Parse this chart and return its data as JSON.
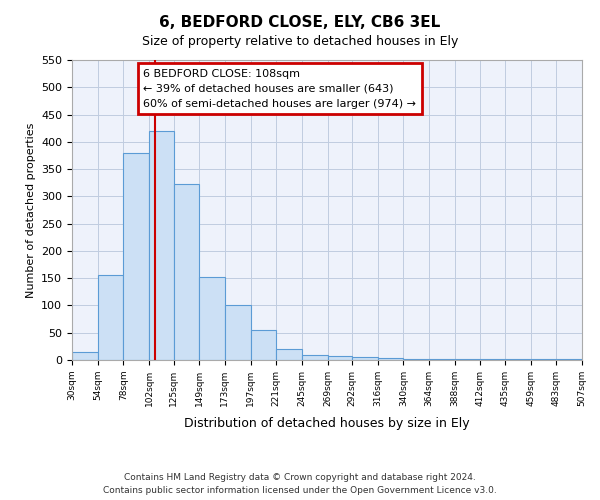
{
  "title": "6, BEDFORD CLOSE, ELY, CB6 3EL",
  "subtitle": "Size of property relative to detached houses in Ely",
  "xlabel": "Distribution of detached houses by size in Ely",
  "ylabel": "Number of detached properties",
  "bar_edges": [
    30,
    54,
    78,
    102,
    125,
    149,
    173,
    197,
    221,
    245,
    269,
    292,
    316,
    340,
    364,
    388,
    412,
    435,
    459,
    483,
    507
  ],
  "bar_heights": [
    15,
    155,
    380,
    420,
    322,
    152,
    100,
    55,
    20,
    10,
    8,
    5,
    3,
    2,
    2,
    1,
    1,
    1,
    1,
    1
  ],
  "bar_color": "#cce0f5",
  "bar_edge_color": "#5b9bd5",
  "vline_x": 108,
  "vline_color": "#cc0000",
  "annotation_box_title": "6 BEDFORD CLOSE: 108sqm",
  "annotation_line1": "← 39% of detached houses are smaller (643)",
  "annotation_line2": "60% of semi-detached houses are larger (974) →",
  "annotation_box_color": "#cc0000",
  "ylim": [
    0,
    550
  ],
  "yticks": [
    0,
    50,
    100,
    150,
    200,
    250,
    300,
    350,
    400,
    450,
    500,
    550
  ],
  "footer_line1": "Contains HM Land Registry data © Crown copyright and database right 2024.",
  "footer_line2": "Contains public sector information licensed under the Open Government Licence v3.0.",
  "background_color": "#eef2fb",
  "grid_color": "#c0cce0"
}
